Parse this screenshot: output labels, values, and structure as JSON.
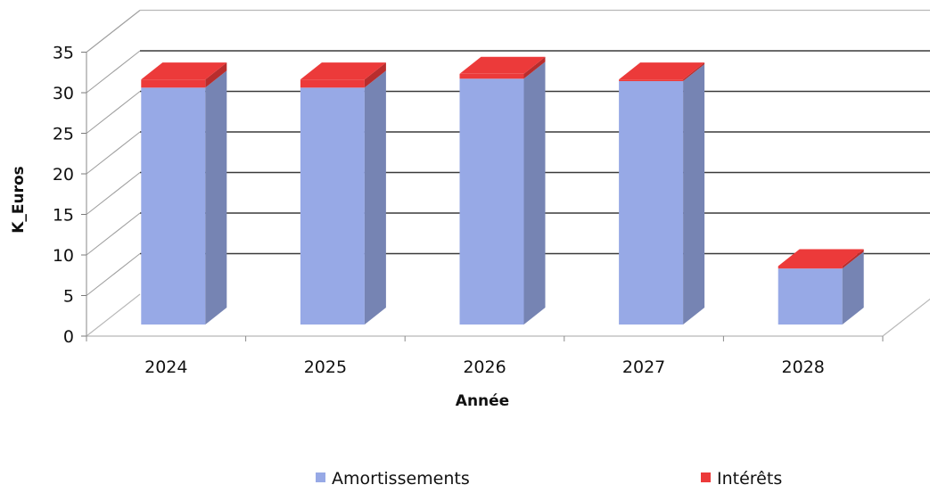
{
  "chart_data": {
    "type": "bar",
    "stacked": true,
    "three_d": true,
    "title": "",
    "xlabel": "Année",
    "ylabel": "K_Euros",
    "ylim": [
      0,
      35
    ],
    "yticks": [
      "0",
      "5",
      "10",
      "15",
      "20",
      "25",
      "30",
      "35"
    ],
    "categories": [
      "2024",
      "2025",
      "2026",
      "2027",
      "2028"
    ],
    "series": [
      {
        "name": "Amortissements",
        "color": "#97a9e6",
        "values": [
          29.2,
          29.2,
          30.3,
          30.0,
          6.9
        ]
      },
      {
        "name": "Intérêts",
        "color": "#ec3a3a",
        "values": [
          1.0,
          1.0,
          0.6,
          0.2,
          0.3
        ]
      }
    ],
    "grid": true,
    "legend_position": "bottom"
  }
}
